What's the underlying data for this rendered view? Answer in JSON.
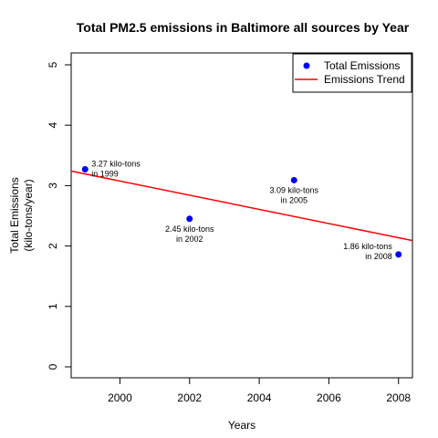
{
  "chart_data": {
    "type": "scatter",
    "title": "Total PM2.5 emissions in Baltimore all sources by Year",
    "xlabel": "Years",
    "ylabel": [
      "Total Emissions",
      "(kilo-tons/year)"
    ],
    "xlim": [
      1998.6,
      2008.4
    ],
    "ylim": [
      0,
      5
    ],
    "x_ticks": [
      2000,
      2002,
      2004,
      2006,
      2008
    ],
    "y_ticks": [
      0,
      1,
      2,
      3,
      4,
      5
    ],
    "grid": false,
    "legend_position": "top-right",
    "series": [
      {
        "name": "Total Emissions",
        "kind": "points",
        "color": "#0000ff",
        "points": [
          {
            "x": 1999,
            "y": 3.27,
            "label": [
              "3.27 kilo-tons",
              "in 1999"
            ],
            "label_pos": "right"
          },
          {
            "x": 2002,
            "y": 2.45,
            "label": [
              "2.45 kilo-tons",
              "in 2002"
            ],
            "label_pos": "below"
          },
          {
            "x": 2005,
            "y": 3.09,
            "label": [
              "3.09 kilo-tons",
              "in 2005"
            ],
            "label_pos": "below"
          },
          {
            "x": 2008,
            "y": 1.86,
            "label": [
              "1.86 kilo-tons",
              "in 2008"
            ],
            "label_pos": "left"
          }
        ]
      },
      {
        "name": "Emissions Trend",
        "kind": "line",
        "color": "#ff0000",
        "from": {
          "x": 1998.6,
          "y": 3.24
        },
        "to": {
          "x": 2008.4,
          "y": 2.09
        }
      }
    ]
  }
}
